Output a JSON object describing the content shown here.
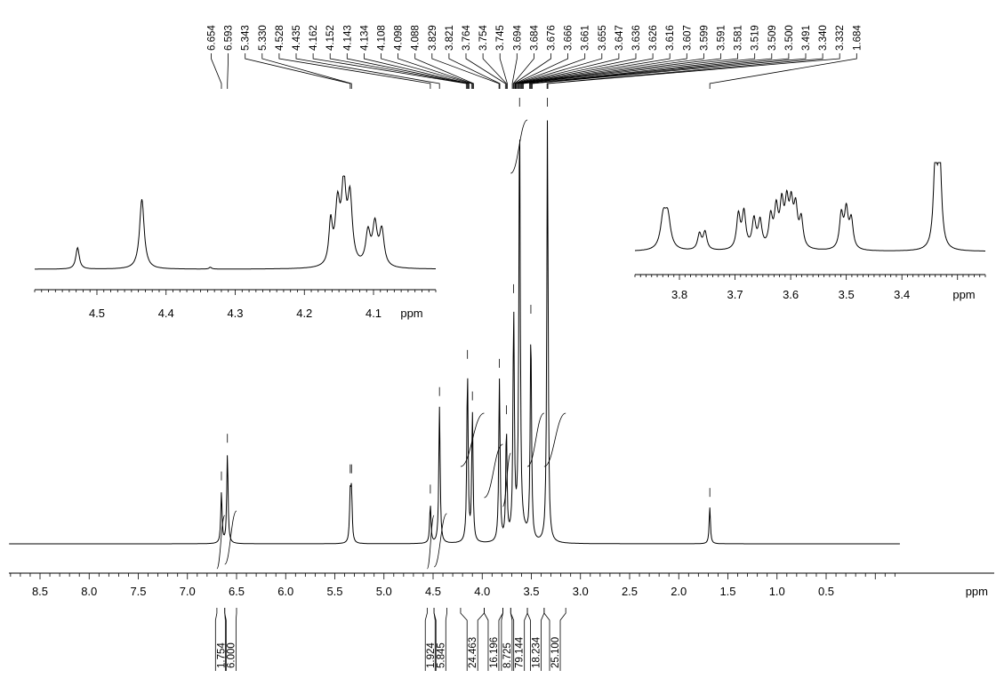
{
  "chart_data": [
    {
      "type": "line",
      "spectrum": "1H NMR",
      "xlabel": "ppm",
      "xlim": [
        8.9,
        -0.25
      ],
      "x_reversed": true,
      "grid": false,
      "xticks": [
        "8.5",
        "8.0",
        "7.5",
        "7.0",
        "6.5",
        "6.0",
        "5.5",
        "5.0",
        "4.5",
        "4.0",
        "3.5",
        "3.0",
        "2.5",
        "2.0",
        "1.5",
        "1.0",
        "0.5"
      ],
      "peak_labels": [
        "6.654",
        "6.593",
        "5.343",
        "5.330",
        "4.528",
        "4.435",
        "4.162",
        "4.152",
        "4.143",
        "4.134",
        "4.108",
        "4.098",
        "4.088",
        "3.829",
        "3.821",
        "3.764",
        "3.754",
        "3.745",
        "3.694",
        "3.684",
        "3.676",
        "3.666",
        "3.661",
        "3.655",
        "3.647",
        "3.636",
        "3.626",
        "3.616",
        "3.607",
        "3.599",
        "3.591",
        "3.581",
        "3.519",
        "3.509",
        "3.500",
        "3.491",
        "3.340",
        "3.332",
        "1.684"
      ],
      "peaks": [
        {
          "x": 6.654,
          "y": 0.12
        },
        {
          "x": 6.593,
          "y": 0.21
        },
        {
          "x": 5.343,
          "y": 0.11
        },
        {
          "x": 5.33,
          "y": 0.11
        },
        {
          "x": 4.528,
          "y": 0.09
        },
        {
          "x": 4.435,
          "y": 0.32
        },
        {
          "x": 4.15,
          "y": 0.4
        },
        {
          "x": 4.1,
          "y": 0.3
        },
        {
          "x": 3.825,
          "y": 0.38
        },
        {
          "x": 3.754,
          "y": 0.26
        },
        {
          "x": 3.68,
          "y": 0.52
        },
        {
          "x": 3.62,
          "y": 1.0
        },
        {
          "x": 3.505,
          "y": 0.5
        },
        {
          "x": 3.336,
          "y": 1.0
        },
        {
          "x": 1.684,
          "y": 0.085
        }
      ],
      "integrals": [
        {
          "from": 6.7,
          "to": 6.62,
          "value": "1.754"
        },
        {
          "from": 6.62,
          "to": 6.5,
          "value": "6.000"
        },
        {
          "from": 4.56,
          "to": 4.49,
          "value": "1.924"
        },
        {
          "from": 4.49,
          "to": 4.36,
          "value": "5.845"
        },
        {
          "from": 4.22,
          "to": 3.98,
          "value": "24.463"
        },
        {
          "from": 3.98,
          "to": 3.79,
          "value": "16.196"
        },
        {
          "from": 3.79,
          "to": 3.71,
          "value": "8.725"
        },
        {
          "from": 3.71,
          "to": 3.54,
          "value": "79.144"
        },
        {
          "from": 3.54,
          "to": 3.37,
          "value": "18.234"
        },
        {
          "from": 3.37,
          "to": 3.15,
          "value": "25.100"
        }
      ]
    },
    {
      "type": "line",
      "inset": "left",
      "xlabel": "ppm",
      "xlim": [
        4.59,
        4.01
      ],
      "xticks": [
        "4.5",
        "4.4",
        "4.3",
        "4.2",
        "4.1"
      ]
    },
    {
      "type": "line",
      "inset": "right",
      "xlabel": "ppm",
      "xlim": [
        3.88,
        3.25
      ],
      "xticks": [
        "3.8",
        "3.7",
        "3.6",
        "3.5",
        "3.4"
      ]
    }
  ]
}
